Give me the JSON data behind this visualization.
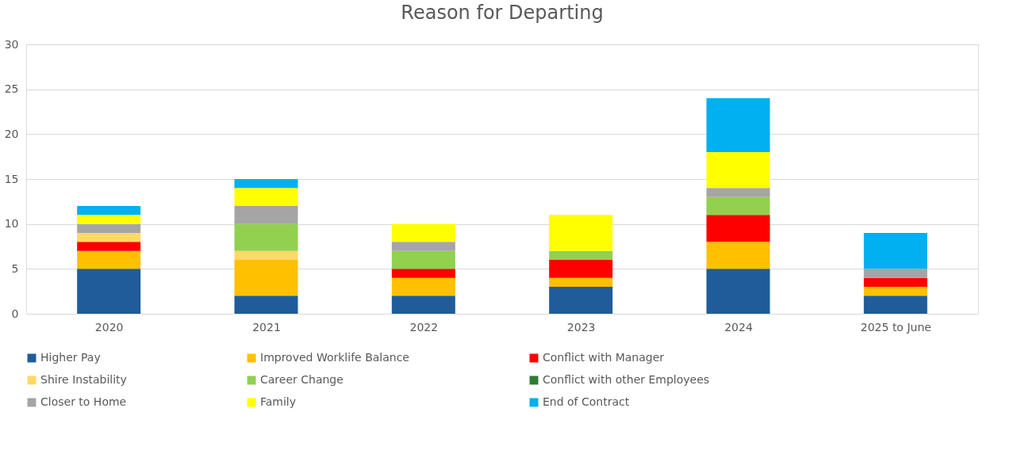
{
  "chart_data": {
    "type": "bar",
    "title": "Reason for Departing",
    "stacked": true,
    "categories": [
      "2020",
      "2021",
      "2022",
      "2023",
      "2024",
      "2025 to June"
    ],
    "series": [
      {
        "name": "Higher Pay",
        "color": "#1f5c99",
        "values": [
          5,
          2,
          2,
          3,
          5,
          2
        ]
      },
      {
        "name": "Improved Worklife Balance",
        "color": "#ffc000",
        "values": [
          2,
          4,
          2,
          1,
          3,
          1
        ]
      },
      {
        "name": "Conflict with Manager",
        "color": "#ff0000",
        "values": [
          1,
          0,
          1,
          2,
          3,
          1
        ]
      },
      {
        "name": "Shire Instability",
        "color": "#ffd966",
        "values": [
          1,
          1,
          0,
          0,
          0,
          0
        ]
      },
      {
        "name": "Career Change",
        "color": "#92d050",
        "values": [
          0,
          3,
          2,
          1,
          2,
          0
        ]
      },
      {
        "name": "Conflict with other Employees",
        "color": "#2e7d32",
        "values": [
          0,
          0,
          0,
          0,
          0,
          0
        ]
      },
      {
        "name": "Closer to Home",
        "color": "#a5a5a5",
        "values": [
          1,
          2,
          1,
          0,
          1,
          1
        ]
      },
      {
        "name": "Family",
        "color": "#ffff00",
        "values": [
          1,
          2,
          2,
          4,
          4,
          0
        ]
      },
      {
        "name": "End of Contract",
        "color": "#00b0f0",
        "values": [
          1,
          1,
          0,
          0,
          6,
          4
        ]
      }
    ],
    "ylim": [
      0,
      30
    ],
    "yticks": [
      0,
      5,
      10,
      15,
      20,
      25,
      30
    ],
    "grid": "y",
    "legend": "bottom"
  }
}
